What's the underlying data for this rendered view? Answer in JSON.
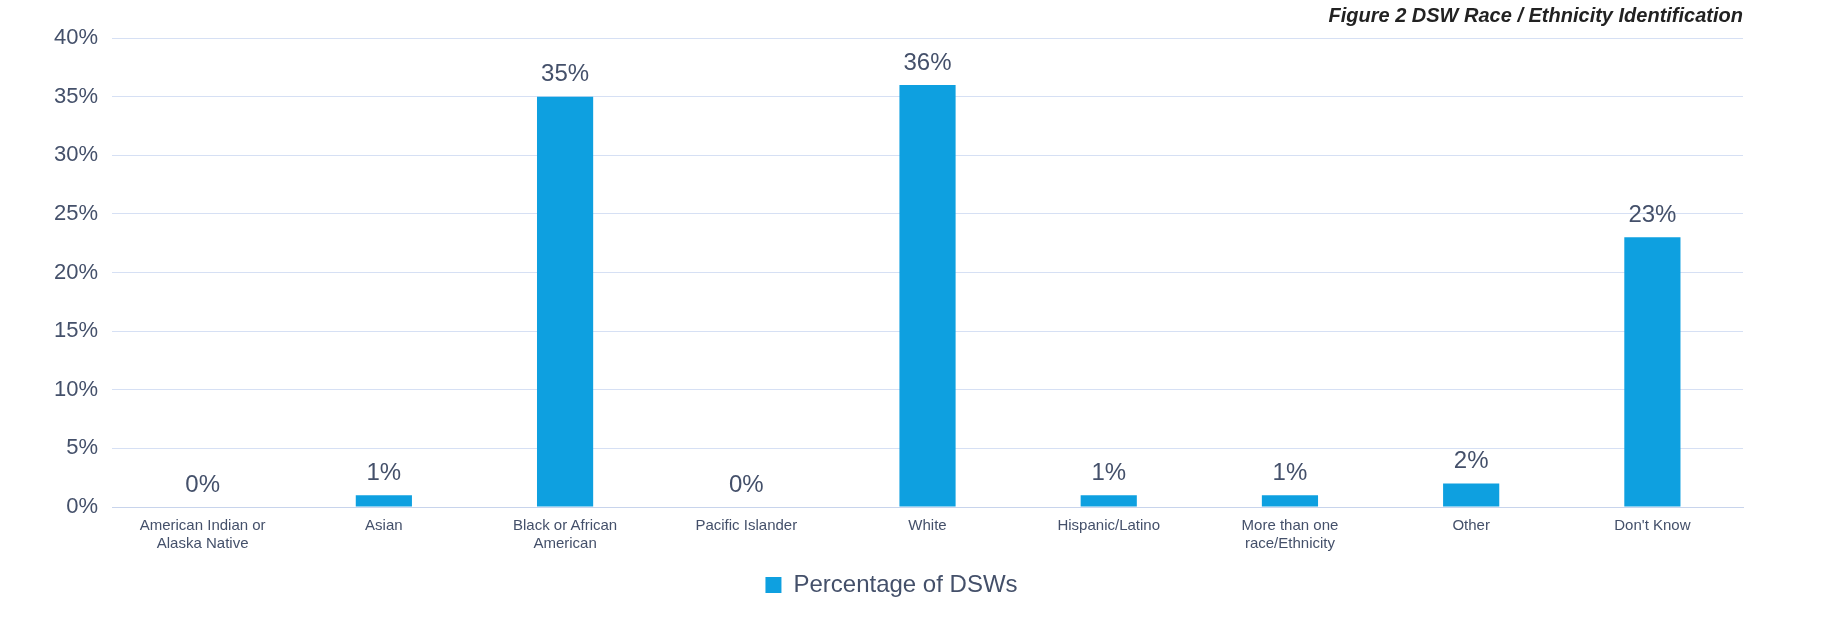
{
  "chart_data": {
    "type": "bar",
    "title": "Figure 2 DSW Race / Ethnicity Identification",
    "categories": [
      "American Indian or Alaska Native",
      "Asian",
      "Black or African American",
      "Pacific Islander",
      "White",
      "Hispanic/Latino",
      "More than one race/Ethnicity",
      "Other",
      "Don't Know"
    ],
    "series": [
      {
        "name": "Percentage of DSWs",
        "color": "#0ea0e0",
        "values": [
          0,
          1,
          35,
          0,
          36,
          1,
          1,
          2,
          23
        ],
        "value_labels": [
          "0%",
          "1%",
          "35%",
          "0%",
          "36%",
          "1%",
          "1%",
          "2%",
          "23%"
        ]
      }
    ],
    "ylim": [
      0,
      40
    ],
    "yticks": [
      {
        "value": 0,
        "label": "0%"
      },
      {
        "value": 5,
        "label": "5%"
      },
      {
        "value": 10,
        "label": "10%"
      },
      {
        "value": 15,
        "label": "15%"
      },
      {
        "value": 20,
        "label": "20%"
      },
      {
        "value": 25,
        "label": "25%"
      },
      {
        "value": 30,
        "label": "30%"
      },
      {
        "value": 35,
        "label": "35%"
      },
      {
        "value": 40,
        "label": "40%"
      }
    ],
    "grid": "y",
    "legend": "bottom"
  }
}
